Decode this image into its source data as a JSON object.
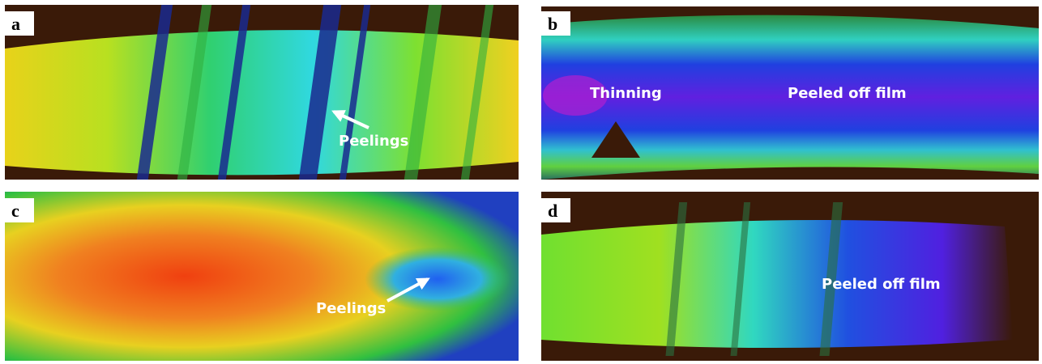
{
  "panels": [
    {
      "label": "a",
      "annotations": [
        "Peelings"
      ]
    },
    {
      "label": "b",
      "annotations": [
        "Thinning",
        "Peeled off film"
      ]
    },
    {
      "label": "c",
      "annotations": [
        "Peelings"
      ]
    },
    {
      "label": "d",
      "annotations": [
        "Peeled off film"
      ]
    }
  ]
}
